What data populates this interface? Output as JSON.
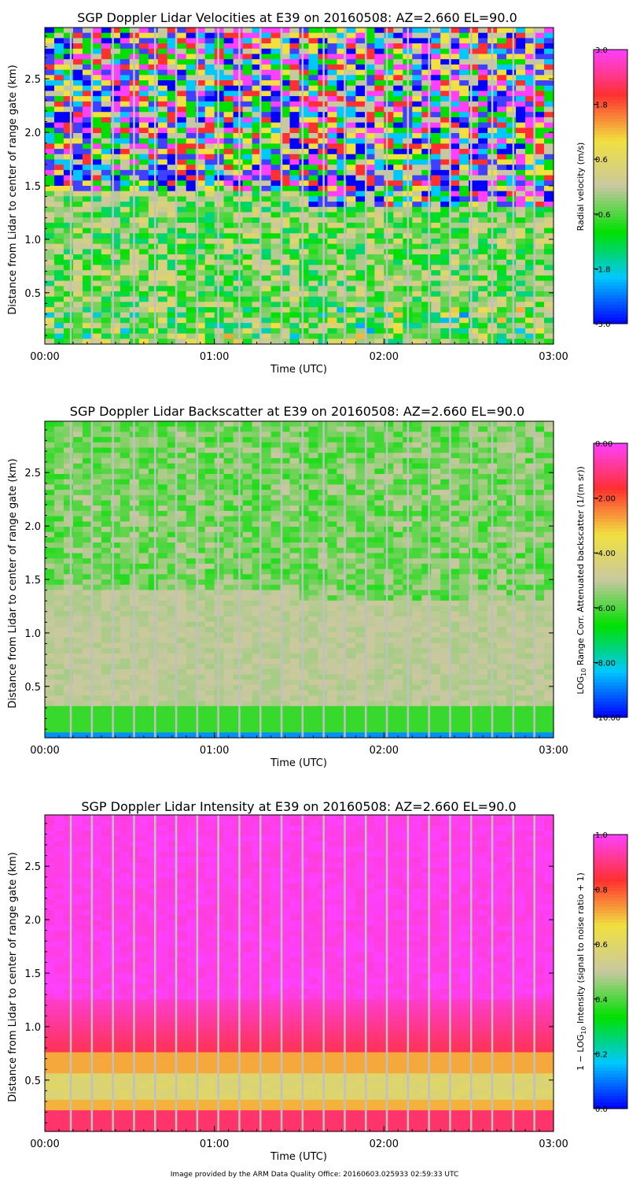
{
  "figure": {
    "credit": "Image provided by the ARM Data Quality Office: 20160603.025933 02:59:33 UTC"
  },
  "chart_data": [
    {
      "type": "heatmap",
      "id": "velocity",
      "title": "SGP Doppler Lidar Velocities at E39 on 20160508: AZ=2.660 EL=90.0",
      "xlabel": "Time (UTC)",
      "ylabel": "Distance from Lidar to center of range gate (km)",
      "x_ticks": [
        "00:00",
        "01:00",
        "02:00",
        "03:00"
      ],
      "x_range_hours": [
        0,
        3
      ],
      "y_ticks": [
        "0.5",
        "1.0",
        "1.5",
        "2.0",
        "2.5"
      ],
      "y_range_km": [
        0.02,
        2.98
      ],
      "colorbar_label": "Radial velocity (m/s)",
      "colorbar_ticks": [
        "3.0",
        "1.8",
        "0.6",
        "-0.6",
        "-1.8",
        "-3.0"
      ],
      "colorbar_range": [
        -3.0,
        3.0
      ],
      "colormap": [
        "#0000ff",
        "#00c8ff",
        "#00e000",
        "#c8c8a0",
        "#f0e040",
        "#ff3030",
        "#ff40ff"
      ]
    },
    {
      "type": "heatmap",
      "id": "backscatter",
      "title": "SGP Doppler Lidar Backscatter at E39 on 20160508: AZ=2.660 EL=90.0",
      "xlabel": "Time (UTC)",
      "ylabel": "Distance from Lidar to center of range gate (km)",
      "x_ticks": [
        "00:00",
        "01:00",
        "02:00",
        "03:00"
      ],
      "x_range_hours": [
        0,
        3
      ],
      "y_ticks": [
        "0.5",
        "1.0",
        "1.5",
        "2.0",
        "2.5"
      ],
      "y_range_km": [
        0.02,
        2.98
      ],
      "colorbar_label_prefix": "LOG",
      "colorbar_label_sub": "10",
      "colorbar_label_rest": " Range Corr. Attenuated backscatter (1/(m sr))",
      "colorbar_ticks": [
        "0.00",
        "-2.00",
        "-4.00",
        "-6.00",
        "-8.00",
        "-10.00"
      ],
      "colorbar_range": [
        -10.0,
        0.0
      ],
      "colormap": [
        "#0000ff",
        "#00c8ff",
        "#00e000",
        "#c8c8a0",
        "#f0e040",
        "#ff3030",
        "#ff40ff"
      ]
    },
    {
      "type": "heatmap",
      "id": "intensity",
      "title": "SGP Doppler Lidar Intensity at E39 on 20160508: AZ=2.660 EL=90.0",
      "xlabel": "Time (UTC)",
      "ylabel": "Distance from Lidar to center of range gate (km)",
      "x_ticks": [
        "00:00",
        "01:00",
        "02:00",
        "03:00"
      ],
      "x_range_hours": [
        0,
        3
      ],
      "y_ticks": [
        "0.5",
        "1.0",
        "1.5",
        "2.0",
        "2.5"
      ],
      "y_range_km": [
        0.02,
        2.98
      ],
      "colorbar_label_prefix": "1 − LOG",
      "colorbar_label_sub": "10",
      "colorbar_label_rest": " Intensity (signal to noise ratio + 1)",
      "colorbar_ticks": [
        "1.0",
        "0.8",
        "0.6",
        "0.4",
        "0.2",
        "0.0"
      ],
      "colorbar_range": [
        0.0,
        1.0
      ],
      "colormap": [
        "#0000ff",
        "#00c8ff",
        "#00e000",
        "#c8c8a0",
        "#f0e040",
        "#ff3030",
        "#ff40ff"
      ]
    }
  ]
}
